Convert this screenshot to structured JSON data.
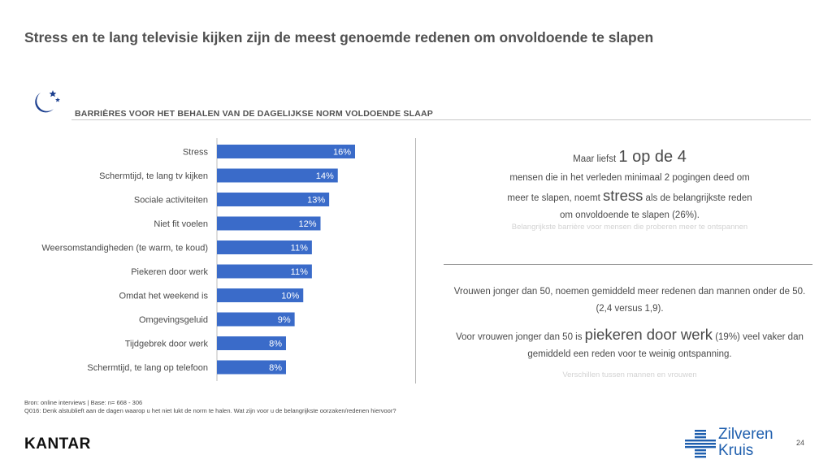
{
  "title": "Stress en te lang televisie kijken zijn de meest genoemde redenen om onvoldoende te slapen",
  "section_title": "BARRIÈRES VOOR HET BEHALEN VAN DE DAGELIJKSE NORM VOLDOENDE SLAAP",
  "chart_data": {
    "type": "bar",
    "orientation": "horizontal",
    "categories": [
      "Stress",
      "Schermtijd, te lang tv kijken",
      "Sociale activiteiten",
      "Niet fit voelen",
      "Weersomstandigheden (te warm, te koud)",
      "Piekeren door werk",
      "Omdat het weekend is",
      "Omgevingsgeluid",
      "Tijdgebrek door werk",
      "Schermtijd, te lang op telefoon"
    ],
    "values": [
      16,
      14,
      13,
      12,
      11,
      11,
      10,
      9,
      8,
      8
    ],
    "value_labels": [
      "16%",
      "14%",
      "13%",
      "12%",
      "11%",
      "11%",
      "10%",
      "9%",
      "8%",
      "8%"
    ],
    "unit": "%",
    "bar_color": "#3a6bc9",
    "xlim": [
      0,
      16
    ]
  },
  "insight1": {
    "prefix": "Maar liefst ",
    "emphasis": "1 op de 4",
    "line2": "mensen die in het verleden minimaal 2 pogingen deed om",
    "line3_prefix": "meer te slapen, noemt ",
    "line3_emphasis": "stress",
    "line3_suffix": " als de belangrijkste reden",
    "line4": "om onvoldoende te slapen (26%).",
    "caption": "Belangrijkste barrière voor mensen die proberen meer te ontspannen"
  },
  "insight2": {
    "line1": "Vrouwen jonger dan 50, noemen gemiddeld meer redenen dan mannen onder de 50.",
    "line2": "(2,4 versus 1,9).",
    "line3_prefix": "Voor vrouwen jonger dan 50 is ",
    "line3_emphasis": "piekeren door werk",
    "line3_suffix": " (19%) veel vaker dan",
    "line4": "gemiddeld een reden voor te weinig ontspanning.",
    "caption": "Verschillen tussen mannen en vrouwen"
  },
  "source_line1": "Bron: online interviews | Base: n= 668 - 306",
  "source_line2": "Q016: Denk alstublieft aan de dagen waarop u het niet lukt de norm te halen. Wat zijn voor u de belangrijkste oorzaken/redenen hiervoor?",
  "brand_left": "KANTAR",
  "brand_right_line1": "Zilveren",
  "brand_right_line2": "Kruis",
  "page_number": "24",
  "colors": {
    "accent": "#3a6bc9",
    "logo_blue": "#1f5fae",
    "moon": "#1c3f8f"
  },
  "icons": {
    "moon": "moon-stars-icon",
    "logo": "zilveren-kruis-cross-icon"
  }
}
